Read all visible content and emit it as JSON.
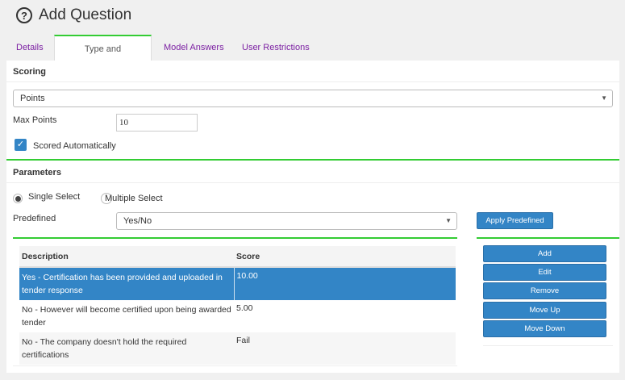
{
  "page": {
    "title": "Add Question",
    "icon": "question-circle-icon"
  },
  "tabs": [
    {
      "label": "Details"
    },
    {
      "label": "Type and Parameters",
      "active": true
    },
    {
      "label": "Model Answers"
    },
    {
      "label": "User Restrictions"
    }
  ],
  "scoring": {
    "header": "Scoring",
    "type_value": "Points",
    "max_points_label": "Max Points",
    "max_points_value": "10",
    "scored_auto_label": "Scored Automatically",
    "scored_auto_checked": true
  },
  "parameters": {
    "header": "Parameters",
    "single_label": "Single Select",
    "multiple_label": "Multiple Select",
    "selected_mode": "single",
    "predefined_label": "Predefined",
    "predefined_value": "Yes/No",
    "apply_label": "Apply Predefined"
  },
  "table": {
    "columns": [
      "Description",
      "Score"
    ],
    "rows": [
      {
        "description": "Yes - Certification has been provided and uploaded in tender response",
        "score": "10.00",
        "selected": true
      },
      {
        "description": "No - However will become certified upon being awarded tender",
        "score": "5.00"
      },
      {
        "description": "No - The company doesn't hold the required certifications",
        "score": "Fail"
      }
    ]
  },
  "actions": {
    "add": "Add",
    "edit": "Edit",
    "remove": "Remove",
    "move_up": "Move Up",
    "move_down": "Move Down"
  },
  "colors": {
    "accent": "#3385c6",
    "tab_active_border": "#33cc33",
    "tab_link": "#7b1fa2"
  }
}
